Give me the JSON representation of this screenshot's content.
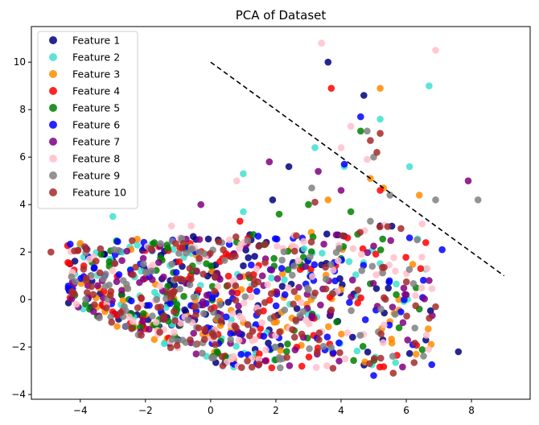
{
  "chart_data": {
    "type": "scatter",
    "title": "PCA of Dataset",
    "xlabel": "",
    "ylabel": "",
    "xlim": [
      -5.5,
      9.8
    ],
    "ylim": [
      -4.2,
      11.5
    ],
    "xticks": [
      -4,
      -2,
      0,
      2,
      4,
      6,
      8
    ],
    "yticks": [
      -4,
      -2,
      0,
      2,
      4,
      6,
      8,
      10
    ],
    "grid": false,
    "legend_position": "top-left",
    "marker_alpha": 0.85,
    "decision_line": {
      "x": [
        0,
        9
      ],
      "y": [
        10,
        1
      ],
      "style": "dashed",
      "color": "#000000"
    },
    "series": [
      {
        "name": "Feature 1",
        "color": "#000080",
        "seed": 101,
        "n": 110,
        "extra": [
          [
            3.6,
            10.0
          ],
          [
            4.7,
            8.6
          ],
          [
            2.4,
            5.6
          ],
          [
            7.6,
            -2.2
          ],
          [
            6.6,
            -1.7
          ],
          [
            5.2,
            3.1
          ],
          [
            1.9,
            4.2
          ]
        ]
      },
      {
        "name": "Feature 2",
        "color": "#40E0D0",
        "seed": 202,
        "n": 90,
        "extra": [
          [
            6.7,
            9.0
          ],
          [
            5.2,
            7.6
          ],
          [
            6.1,
            5.6
          ],
          [
            4.1,
            5.6
          ],
          [
            3.2,
            6.4
          ],
          [
            1.0,
            5.3
          ],
          [
            -3.0,
            3.5
          ],
          [
            1.0,
            3.7
          ]
        ]
      },
      {
        "name": "Feature 3",
        "color": "#FF8C00",
        "seed": 303,
        "n": 80,
        "extra": [
          [
            5.2,
            8.9
          ],
          [
            5.3,
            4.7
          ],
          [
            6.4,
            4.4
          ],
          [
            3.6,
            4.2
          ],
          [
            4.9,
            5.1
          ],
          [
            0.2,
            1.1
          ]
        ]
      },
      {
        "name": "Feature 4",
        "color": "#FF0000",
        "seed": 404,
        "n": 80,
        "extra": [
          [
            3.7,
            8.9
          ],
          [
            5.2,
            4.6
          ],
          [
            6.6,
            2.4
          ],
          [
            4.2,
            2.6
          ],
          [
            0.9,
            3.3
          ]
        ]
      },
      {
        "name": "Feature 5",
        "color": "#008000",
        "seed": 505,
        "n": 90,
        "extra": [
          [
            4.6,
            7.1
          ],
          [
            3.0,
            4.0
          ],
          [
            4.3,
            3.7
          ],
          [
            6.4,
            -0.4
          ],
          [
            6.3,
            0.5
          ],
          [
            2.1,
            3.6
          ]
        ]
      },
      {
        "name": "Feature 6",
        "color": "#0000FF",
        "seed": 606,
        "n": 100,
        "extra": [
          [
            4.6,
            7.7
          ],
          [
            4.1,
            5.7
          ],
          [
            7.1,
            2.1
          ],
          [
            6.1,
            2.6
          ],
          [
            6.2,
            -1.9
          ],
          [
            5.0,
            -3.2
          ]
        ]
      },
      {
        "name": "Feature 7",
        "color": "#800080",
        "seed": 707,
        "n": 100,
        "extra": [
          [
            7.9,
            5.0
          ],
          [
            3.3,
            5.4
          ],
          [
            1.8,
            5.8
          ],
          [
            4.0,
            4.6
          ],
          [
            -0.3,
            4.0
          ],
          [
            6.7,
            0.8
          ],
          [
            6.0,
            0.2
          ]
        ]
      },
      {
        "name": "Feature 8",
        "color": "#FFC0CB",
        "seed": 808,
        "n": 110,
        "extra": [
          [
            3.4,
            10.8
          ],
          [
            6.9,
            10.5
          ],
          [
            4.3,
            7.3
          ],
          [
            4.0,
            6.4
          ],
          [
            0.8,
            5.0
          ],
          [
            4.8,
            5.9
          ],
          [
            -1.2,
            3.1
          ],
          [
            -0.6,
            3.1
          ]
        ]
      },
      {
        "name": "Feature 9",
        "color": "#808080",
        "seed": 909,
        "n": 110,
        "extra": [
          [
            8.2,
            4.2
          ],
          [
            4.8,
            7.1
          ],
          [
            5.0,
            6.0
          ],
          [
            5.5,
            4.4
          ],
          [
            6.9,
            4.2
          ],
          [
            3.1,
            4.7
          ],
          [
            4.9,
            3.3
          ]
        ]
      },
      {
        "name": "Feature 10",
        "color": "#A52A2A",
        "seed": 1010,
        "n": 140,
        "extra": [
          [
            -4.9,
            2.0
          ],
          [
            5.1,
            6.2
          ],
          [
            5.2,
            7.0
          ],
          [
            4.9,
            6.7
          ],
          [
            6.9,
            -0.3
          ],
          [
            5.6,
            -3.1
          ],
          [
            3.2,
            4.1
          ]
        ]
      }
    ]
  }
}
